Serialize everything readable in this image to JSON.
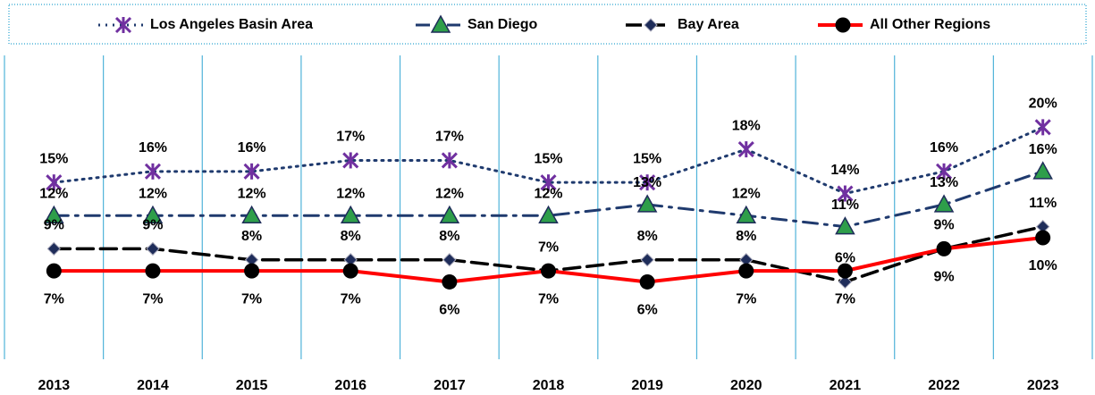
{
  "chart_data": {
    "type": "line",
    "categories": [
      "2013",
      "2014",
      "2015",
      "2016",
      "2017",
      "2018",
      "2019",
      "2020",
      "2021",
      "2022",
      "2023"
    ],
    "ylim": [
      -1,
      26.5
    ],
    "series": [
      {
        "name": "Los Angeles Basin Area",
        "color": "#7030a0",
        "line_color": "#1f3a6e",
        "dash": "dotted",
        "marker": "star",
        "values": [
          15,
          16,
          16,
          17,
          17,
          15,
          15,
          18,
          14,
          16,
          20
        ],
        "value_labels": [
          "15%",
          "16%",
          "16%",
          "17%",
          "17%",
          "15%",
          "15%",
          "18%",
          "14%",
          "16%",
          "20%"
        ]
      },
      {
        "name": "San Diego",
        "color": "#2e9e4a",
        "line_color": "#1f3a6e",
        "dash": "dashdot",
        "marker": "triangle",
        "values": [
          12,
          12,
          12,
          12,
          12,
          12,
          13,
          12,
          11,
          13,
          16
        ],
        "value_labels": [
          "12%",
          "12%",
          "12%",
          "12%",
          "12%",
          "12%",
          "13%",
          "12%",
          "11%",
          "13%",
          "16%"
        ]
      },
      {
        "name": "Bay Area",
        "color": "#1f2d5a",
        "line_color": "#000000",
        "dash": "dashed",
        "marker": "diamond",
        "values": [
          9,
          9,
          8,
          8,
          8,
          7,
          8,
          8,
          6,
          9,
          11
        ],
        "value_labels": [
          "9%",
          "9%",
          "8%",
          "8%",
          "8%",
          "7%",
          "8%",
          "8%",
          "6%",
          "9%",
          "11%"
        ]
      },
      {
        "name": "All Other Regions",
        "color": "#000000",
        "line_color": "#ff0000",
        "dash": "solid",
        "marker": "circle",
        "values": [
          7,
          7,
          7,
          7,
          6,
          7,
          6,
          7,
          7,
          9,
          10
        ],
        "value_labels": [
          "7%",
          "7%",
          "7%",
          "7%",
          "6%",
          "7%",
          "6%",
          "7%",
          "7%",
          "9%",
          "10%"
        ]
      }
    ],
    "grid": true,
    "legend": "top"
  }
}
